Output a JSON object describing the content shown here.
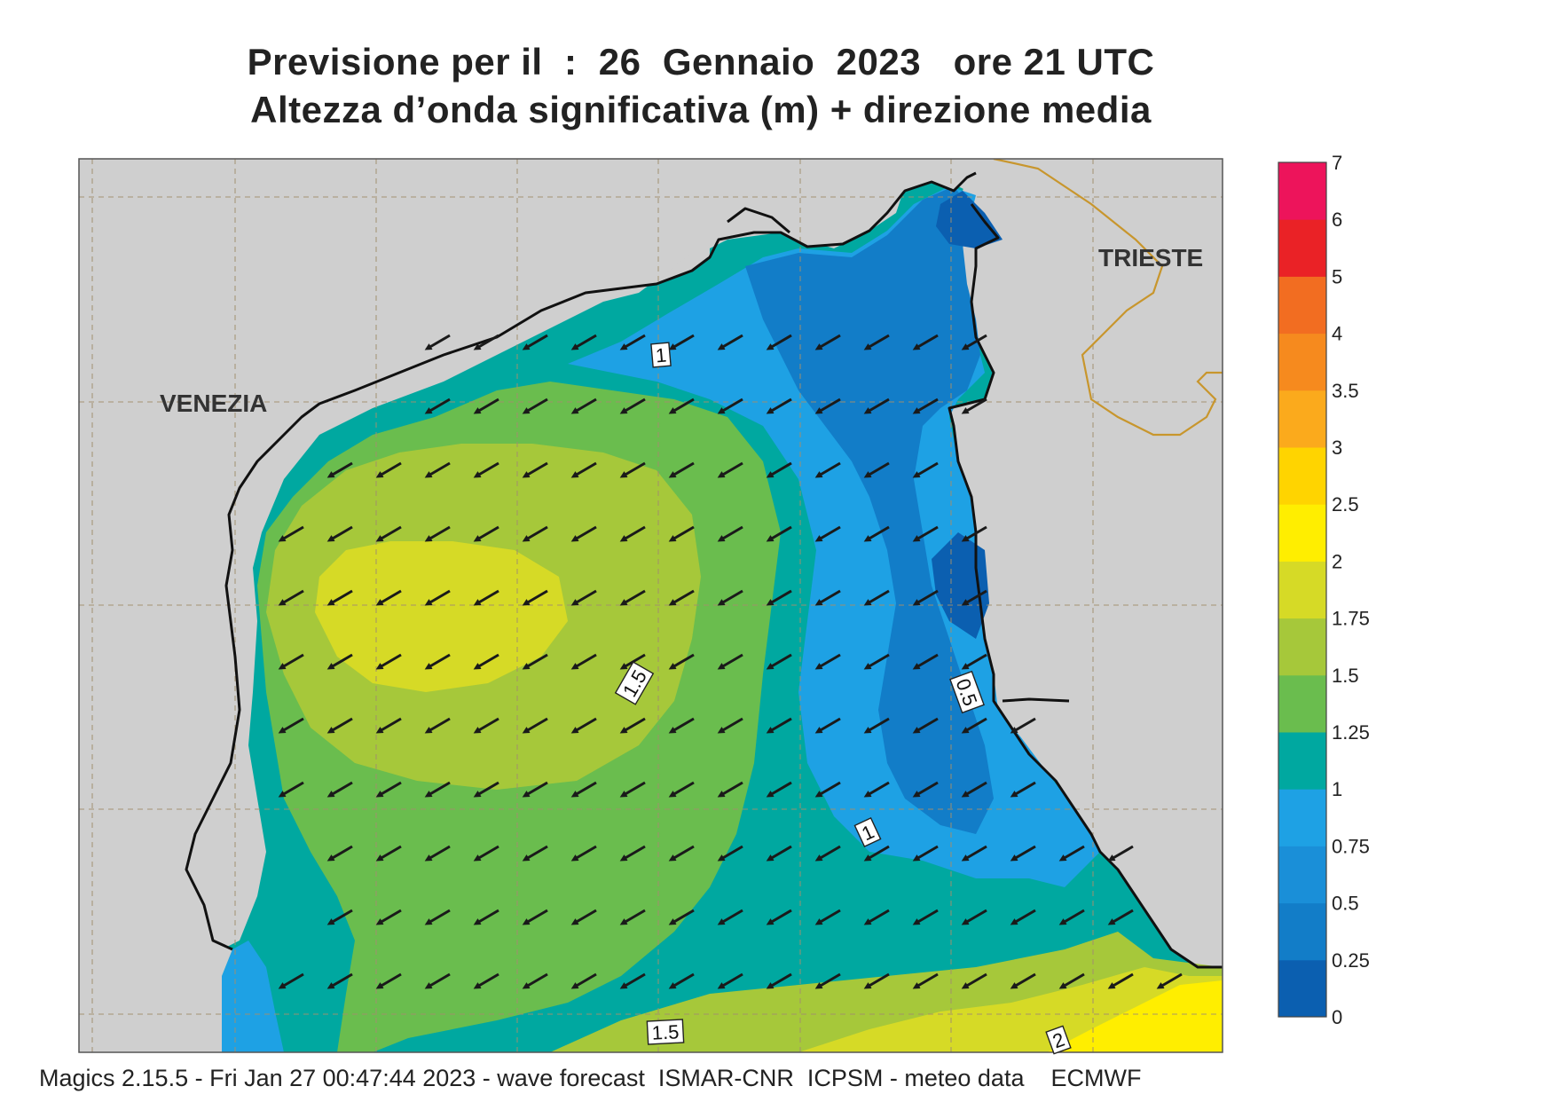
{
  "title_line1": "Previsione per il  :  26  Gennaio  2023   ore 21 UTC",
  "title_line2": "Altezza d’onda significativa (m) + direzione media",
  "footer": "Magics 2.15.5 - Fri Jan 27 00:47:44 2023 - wave forecast  ISMAR-CNR  ICPSM - meteo data    ECMWF",
  "places": {
    "venezia": "VENEZIA",
    "trieste": "TRIESTE"
  },
  "contour_labels": [
    "1",
    "1.5",
    "0.5",
    "1",
    "1.5",
    "2"
  ],
  "legend": {
    "ticks": [
      "0",
      "0.25",
      "0.5",
      "0.75",
      "1",
      "1.25",
      "1.5",
      "1.75",
      "2",
      "2.5",
      "3",
      "3.5",
      "4",
      "5",
      "6",
      "7"
    ],
    "colors": [
      "#0b5fb0",
      "#127dc8",
      "#1a8fd8",
      "#1ea1e4",
      "#00a8a0",
      "#6abd4e",
      "#a6c83a",
      "#d6da26",
      "#ffee00",
      "#ffd400",
      "#fbaa1c",
      "#f68a1e",
      "#f26d21",
      "#ea2226",
      "#ed145b"
    ]
  },
  "wave_direction": "from east-northeast (arrows pointing west-southwest)",
  "colors": {
    "land": "#cfcfcf",
    "coast": "#111111",
    "border": "#c8962d",
    "arrow": "#1a1a1a"
  }
}
